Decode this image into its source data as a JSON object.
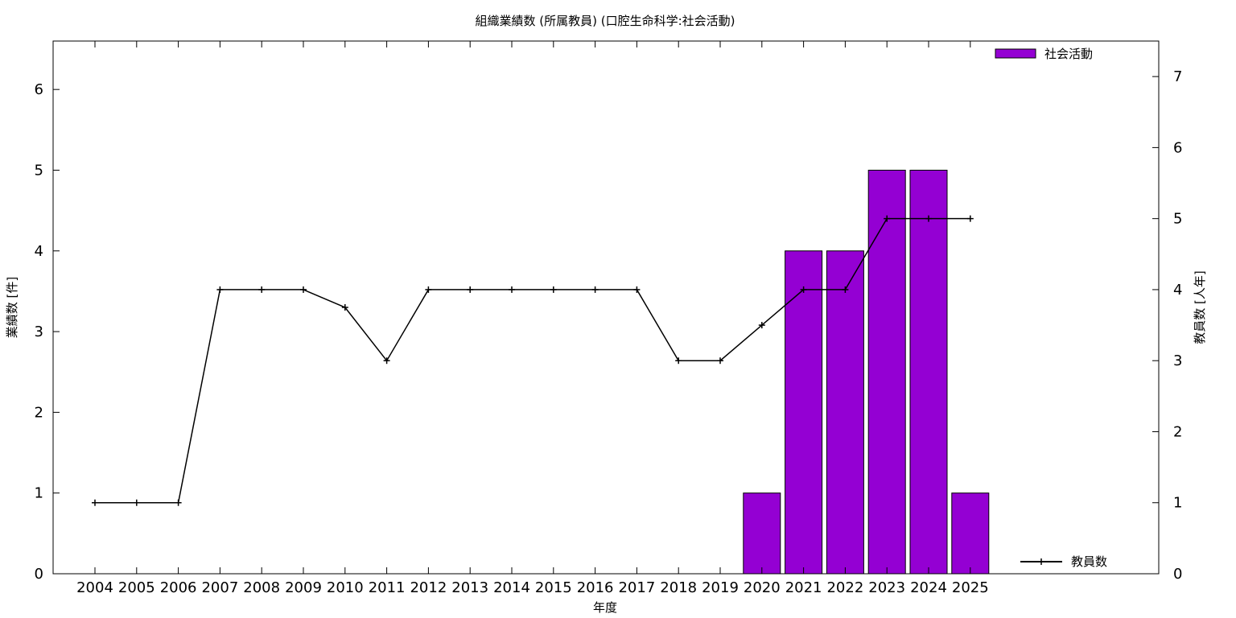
{
  "chart_data": {
    "type": "bar",
    "title": "組織業績数 (所属教員) (口腔生命科学:社会活動)",
    "xlabel": "年度",
    "ylabel": "業績数 [件]",
    "y2label": "教員数 [人年]",
    "categories": [
      "2004",
      "2005",
      "2006",
      "2007",
      "2008",
      "2009",
      "2010",
      "2011",
      "2012",
      "2013",
      "2014",
      "2015",
      "2016",
      "2017",
      "2018",
      "2019",
      "2020",
      "2021",
      "2022",
      "2023",
      "2024",
      "2025"
    ],
    "ylim": [
      0,
      6.6
    ],
    "y2lim": [
      0,
      7.5
    ],
    "yticks": [
      0,
      1,
      2,
      3,
      4,
      5,
      6
    ],
    "y2ticks": [
      0,
      1,
      2,
      3,
      4,
      5,
      6,
      7
    ],
    "series": [
      {
        "name": "社会活動",
        "type": "bar",
        "axis": "left",
        "color": "#9400d3",
        "values": [
          0,
          0,
          0,
          0,
          0,
          0,
          0,
          0,
          0,
          0,
          0,
          0,
          0,
          0,
          0,
          0,
          1,
          4,
          4,
          5,
          5,
          1
        ]
      },
      {
        "name": "教員数",
        "type": "line",
        "axis": "right",
        "color": "#000000",
        "values": [
          1,
          1,
          1,
          4,
          4,
          4,
          3.75,
          3,
          4,
          4,
          4,
          4,
          4,
          4,
          3,
          3,
          3.5,
          4,
          4,
          5,
          5,
          5
        ]
      }
    ],
    "legend": [
      "top-right",
      "bottom-right"
    ],
    "grid": false
  }
}
